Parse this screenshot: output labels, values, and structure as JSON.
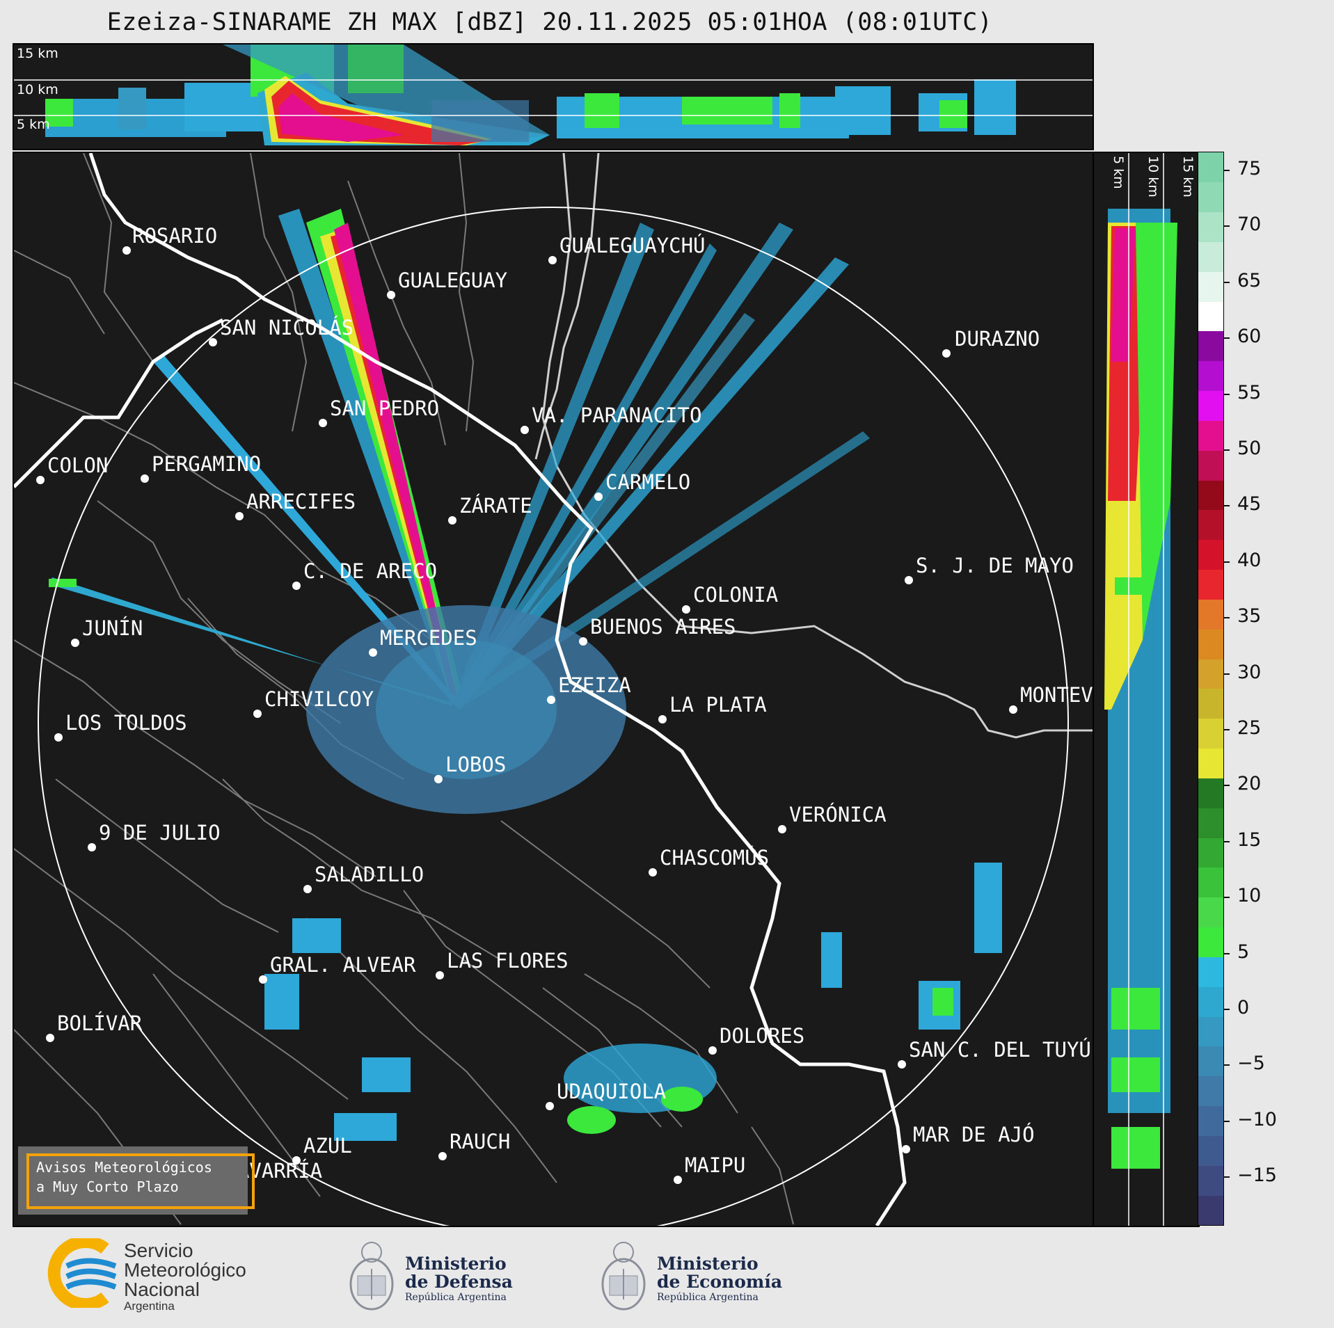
{
  "title": "Ezeiza-SINARAME ZH MAX [dBZ] 20.11.2025 05:01HOA (08:01UTC)",
  "height_labels": {
    "top": [
      "15 km",
      "10 km",
      "5 km"
    ],
    "side": [
      "5 km",
      "10 km",
      "15 km"
    ]
  },
  "cities": [
    {
      "name": "ROSARIO"
    },
    {
      "name": "GUALEGUAYCHÚ"
    },
    {
      "name": "GUALEGUAY"
    },
    {
      "name": "SAN NICOLÁS"
    },
    {
      "name": "DURAZNO"
    },
    {
      "name": "SAN PEDRO"
    },
    {
      "name": "VA. PARANACITO"
    },
    {
      "name": "COLON"
    },
    {
      "name": "PERGAMINO"
    },
    {
      "name": "CARMELO"
    },
    {
      "name": "ARRECIFES"
    },
    {
      "name": "ZÁRATE"
    },
    {
      "name": "S. J. DE MAYO"
    },
    {
      "name": "C. DE ARECO"
    },
    {
      "name": "COLONIA"
    },
    {
      "name": "JUNÍN"
    },
    {
      "name": "BUENOS AIRES"
    },
    {
      "name": "MERCEDES"
    },
    {
      "name": "EZEIZA"
    },
    {
      "name": "MONTEV"
    },
    {
      "name": "CHIVILCOY"
    },
    {
      "name": "LA PLATA"
    },
    {
      "name": "LOS TOLDOS"
    },
    {
      "name": "LOBOS"
    },
    {
      "name": "VERÓNICA"
    },
    {
      "name": "9 DE JULIO"
    },
    {
      "name": "CHASCOMÚS"
    },
    {
      "name": "SALADILLO"
    },
    {
      "name": "GRAL. ALVEAR"
    },
    {
      "name": "LAS FLORES"
    },
    {
      "name": "BOLÍVAR"
    },
    {
      "name": "DOLORES"
    },
    {
      "name": "SAN C. DEL TUYÚ"
    },
    {
      "name": "UDAQUIOLA"
    },
    {
      "name": "MAR DE AJÓ"
    },
    {
      "name": "RAUCH"
    },
    {
      "name": "AZUL"
    },
    {
      "name": "OLAVARRÍA"
    },
    {
      "name": "MAIPU"
    }
  ],
  "colorbar": {
    "unit": "dBZ",
    "ticks": [
      "75",
      "70",
      "65",
      "60",
      "55",
      "50",
      "45",
      "40",
      "35",
      "30",
      "25",
      "20",
      "15",
      "10",
      "5",
      "0",
      "−5",
      "−10",
      "−15"
    ],
    "colors": [
      "#3a3a6e",
      "#3e4b80",
      "#3f5a8f",
      "#406a9c",
      "#3f7aa8",
      "#3b8ab4",
      "#3599c2",
      "#2fa8cf",
      "#2db8e0",
      "#3be83b",
      "#48d84a",
      "#3ac23a",
      "#33a833",
      "#2c8f2c",
      "#247a24",
      "#e6e633",
      "#d9d133",
      "#c9b52c",
      "#d4a12a",
      "#db8a22",
      "#e3772a",
      "#e8262e",
      "#d4132a",
      "#b5102a",
      "#950a1a",
      "#c10f55",
      "#e30f8f",
      "#e20ff0",
      "#b40fd0",
      "#8a0aa0",
      "#ffffff",
      "#e6f5ee",
      "#c8ecd9",
      "#abe3c6",
      "#90d9b5",
      "#7ed2aa"
    ]
  },
  "warning": {
    "line1": "Avisos Meteorológicos",
    "line2": "a Muy Corto Plazo"
  },
  "logos": {
    "smn": {
      "line1": "Servicio",
      "line2": "Meteorológico",
      "line3": "Nacional",
      "line4": "Argentina"
    },
    "defensa": {
      "line1": "Ministerio",
      "line2": "de Defensa",
      "line3": "República Argentina"
    },
    "economia": {
      "line1": "Ministerio",
      "line2": "de Economía",
      "line3": "República Argentina"
    }
  },
  "colors": {
    "panel_bg": "#1a1a1a",
    "accent_orange": "#f4a20b",
    "smn_blue": "#1f8bd0",
    "smn_yellow": "#f6b100"
  }
}
